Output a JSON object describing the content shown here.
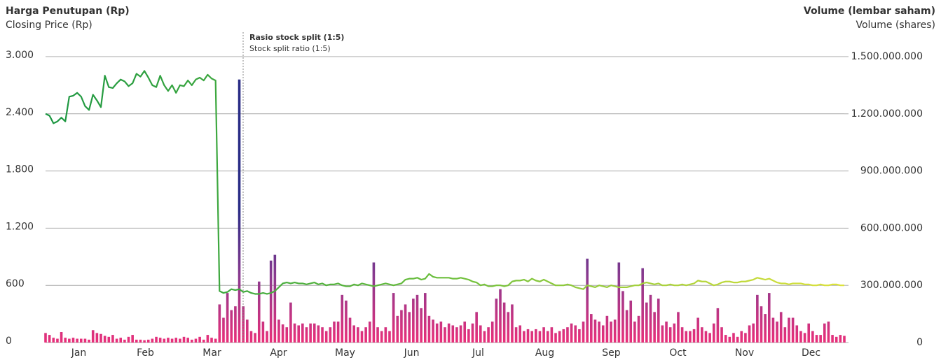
{
  "chart_data": {
    "type": "bar-line",
    "y_title": "Harga Penutupan (Rp)",
    "y_subtitle": "Closing Price (Rp)",
    "y2_title": "Volume (lembar saham)",
    "y2_subtitle": "Volume (shares)",
    "annotation": "Rasio stock split (1:5)",
    "annotation_sub": "Stock split ratio (1:5)",
    "months": [
      "Jan",
      "Feb",
      "Mar",
      "Apr",
      "May",
      "Jun",
      "Jul",
      "Aug",
      "Sep",
      "Oct",
      "Nov",
      "Dec"
    ],
    "ylim": [
      0,
      3000
    ],
    "yticks": [
      0,
      600,
      {
        "value": 1200,
        "label": "1.200"
      },
      {
        "value": 1800,
        "label": "1.800"
      },
      {
        "value": 2400,
        "label": "2.400"
      },
      {
        "value": 3000,
        "label": "3.000"
      }
    ],
    "y2lim": [
      0,
      1500000000
    ],
    "y2ticks": [
      0,
      {
        "value": 300000000,
        "label": "300.000.000"
      },
      {
        "value": 600000000,
        "label": "600.000.000"
      },
      {
        "value": 900000000,
        "label": "900.000.000"
      },
      {
        "value": 1200000000,
        "label": "1.200.000.000"
      },
      {
        "value": 1500000000,
        "label": "1.500.000.000"
      }
    ],
    "grid": true,
    "series": [
      {
        "type": "bar",
        "axis": "y2",
        "colors": [
          "#e8307a",
          "#8a3a8f",
          "#2a2d86"
        ],
        "values": [
          50000000.0,
          40000000.0,
          25000000.0,
          20000000.0,
          55000000.0,
          25000000.0,
          20000000.0,
          25000000.0,
          20000000.0,
          20000000.0,
          20000000.0,
          15000000.0,
          65000000.0,
          50000000.0,
          45000000.0,
          35000000.0,
          30000000.0,
          40000000.0,
          20000000.0,
          25000000.0,
          15000000.0,
          30000000.0,
          40000000.0,
          15000000.0,
          15000000.0,
          12000000.0,
          15000000.0,
          20000000.0,
          30000000.0,
          25000000.0,
          20000000.0,
          25000000.0,
          20000000.0,
          25000000.0,
          20000000.0,
          30000000.0,
          25000000.0,
          15000000.0,
          20000000.0,
          30000000.0,
          15000000.0,
          40000000.0,
          25000000.0,
          20000000.0,
          200000000.0,
          130000000.0,
          260000000.0,
          170000000.0,
          190000000.0,
          1380000000.0,
          190000000.0,
          120000000.0,
          60000000.0,
          50000000.0,
          320000000.0,
          110000000.0,
          60000000.0,
          430000000.0,
          460000000.0,
          120000000.0,
          95000000.0,
          80000000.0,
          210000000.0,
          100000000.0,
          90000000.0,
          100000000.0,
          80000000.0,
          100000000.0,
          100000000.0,
          90000000.0,
          80000000.0,
          60000000.0,
          80000000.0,
          110000000.0,
          110000000.0,
          250000000.0,
          220000000.0,
          130000000.0,
          90000000.0,
          80000000.0,
          60000000.0,
          80000000.0,
          110000000.0,
          420000000.0,
          80000000.0,
          60000000.0,
          80000000.0,
          60000000.0,
          260000000.0,
          140000000.0,
          170000000.0,
          200000000.0,
          160000000.0,
          230000000.0,
          250000000.0,
          180000000.0,
          260000000.0,
          140000000.0,
          120000000.0,
          100000000.0,
          110000000.0,
          80000000.0,
          100000000.0,
          90000000.0,
          80000000.0,
          90000000.0,
          110000000.0,
          70000000.0,
          100000000.0,
          160000000.0,
          90000000.0,
          60000000.0,
          80000000.0,
          110000000.0,
          230000000.0,
          280000000.0,
          210000000.0,
          160000000.0,
          200000000.0,
          80000000.0,
          90000000.0,
          60000000.0,
          70000000.0,
          60000000.0,
          70000000.0,
          60000000.0,
          80000000.0,
          60000000.0,
          80000000.0,
          50000000.0,
          60000000.0,
          70000000.0,
          80000000.0,
          100000000.0,
          90000000.0,
          70000000.0,
          110000000.0,
          440000000.0,
          150000000.0,
          120000000.0,
          110000000.0,
          90000000.0,
          140000000.0,
          110000000.0,
          120000000.0,
          420000000.0,
          270000000.0,
          170000000.0,
          220000000.0,
          110000000.0,
          140000000.0,
          390000000.0,
          210000000.0,
          250000000.0,
          160000000.0,
          230000000.0,
          90000000.0,
          110000000.0,
          80000000.0,
          100000000.0,
          160000000.0,
          80000000.0,
          60000000.0,
          60000000.0,
          70000000.0,
          130000000.0,
          80000000.0,
          60000000.0,
          50000000.0,
          100000000.0,
          180000000.0,
          80000000.0,
          40000000.0,
          30000000.0,
          50000000.0,
          30000000.0,
          60000000.0,
          50000000.0,
          90000000.0,
          100000000.0,
          250000000.0,
          190000000.0,
          150000000.0,
          260000000.0,
          130000000.0,
          110000000.0,
          160000000.0,
          80000000.0,
          130000000.0,
          130000000.0,
          90000000.0,
          60000000.0,
          50000000.0,
          100000000.0,
          60000000.0,
          40000000.0,
          40000000.0,
          100000000.0,
          110000000.0,
          40000000.0,
          30000000.0,
          40000000.0,
          35000000.0
        ]
      },
      {
        "type": "line",
        "colors": [
          "#1a9641",
          "#6cbf3c",
          "#dde23b"
        ],
        "values": [
          2400,
          2380,
          2300,
          2320,
          2360,
          2320,
          2580,
          2590,
          2620,
          2580,
          2480,
          2440,
          2600,
          2540,
          2470,
          2800,
          2680,
          2670,
          2720,
          2760,
          2740,
          2690,
          2720,
          2820,
          2790,
          2850,
          2780,
          2700,
          2680,
          2800,
          2700,
          2640,
          2700,
          2620,
          2700,
          2690,
          2750,
          2700,
          2760,
          2780,
          2750,
          2810,
          2770,
          2750,
          540,
          520,
          530,
          560,
          550,
          560,
          530,
          540,
          520,
          510,
          510,
          520,
          510,
          520,
          540,
          580,
          620,
          630,
          620,
          630,
          620,
          620,
          610,
          620,
          630,
          610,
          620,
          600,
          610,
          610,
          620,
          600,
          590,
          590,
          610,
          600,
          620,
          610,
          600,
          590,
          600,
          610,
          620,
          610,
          600,
          610,
          620,
          660,
          670,
          670,
          680,
          660,
          670,
          720,
          690,
          680,
          680,
          680,
          680,
          670,
          670,
          680,
          670,
          660,
          640,
          630,
          600,
          610,
          590,
          590,
          600,
          600,
          590,
          600,
          640,
          650,
          650,
          660,
          640,
          670,
          650,
          640,
          660,
          640,
          620,
          600,
          600,
          600,
          610,
          600,
          580,
          570,
          560,
          600,
          590,
          580,
          600,
          590,
          580,
          600,
          590,
          580,
          580,
          580,
          590,
          600,
          600,
          620,
          630,
          620,
          610,
          620,
          600,
          600,
          610,
          600,
          600,
          610,
          600,
          610,
          620,
          650,
          640,
          640,
          620,
          600,
          610,
          630,
          640,
          640,
          630,
          630,
          640,
          640,
          650,
          660,
          680,
          670,
          660,
          670,
          650,
          630,
          620,
          620,
          610,
          620,
          620,
          620,
          610,
          610,
          600,
          600,
          610,
          600,
          600,
          610,
          610,
          600,
          600
        ]
      }
    ]
  }
}
